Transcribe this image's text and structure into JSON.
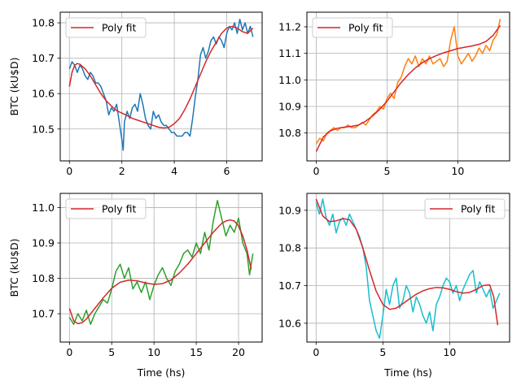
{
  "figure": {
    "background": "#ffffff",
    "grid_color": "#b0b0b0",
    "fit_color": "#d62728"
  },
  "chart_data": [
    {
      "type": "line",
      "xlabel": "",
      "ylabel": "BTC (kU$D)",
      "xlim": [
        -0.35,
        7.35
      ],
      "ylim": [
        10.41,
        10.83
      ],
      "xticks": [
        0,
        2,
        4,
        6
      ],
      "yticks": [
        10.5,
        10.6,
        10.7,
        10.8
      ],
      "ytick_labels": [
        "10.5",
        "10.6",
        "10.7",
        "10.8"
      ],
      "grid": true,
      "legend": {
        "loc": "upper left",
        "entries": [
          "Poly fit"
        ]
      },
      "series": [
        {
          "role": "data",
          "color": "#1f77b4",
          "x": [
            0,
            0.1,
            0.2,
            0.3,
            0.4,
            0.5,
            0.6,
            0.7,
            0.8,
            0.9,
            1.0,
            1.1,
            1.2,
            1.3,
            1.4,
            1.5,
            1.6,
            1.7,
            1.8,
            1.9,
            2.0,
            2.05,
            2.1,
            2.2,
            2.3,
            2.4,
            2.5,
            2.6,
            2.7,
            2.8,
            2.9,
            3.0,
            3.1,
            3.2,
            3.3,
            3.4,
            3.5,
            3.6,
            3.7,
            3.8,
            3.9,
            4.0,
            4.1,
            4.2,
            4.3,
            4.4,
            4.5,
            4.6,
            4.7,
            4.8,
            4.9,
            5.0,
            5.1,
            5.2,
            5.3,
            5.4,
            5.5,
            5.6,
            5.7,
            5.8,
            5.9,
            6.0,
            6.1,
            6.2,
            6.3,
            6.4,
            6.5,
            6.6,
            6.7,
            6.8,
            6.9,
            7.0
          ],
          "y": [
            10.67,
            10.69,
            10.68,
            10.66,
            10.68,
            10.67,
            10.65,
            10.64,
            10.66,
            10.65,
            10.63,
            10.63,
            10.62,
            10.6,
            10.58,
            10.54,
            10.56,
            10.55,
            10.57,
            10.52,
            10.47,
            10.44,
            10.52,
            10.55,
            10.53,
            10.56,
            10.57,
            10.55,
            10.6,
            10.57,
            10.53,
            10.51,
            10.5,
            10.55,
            10.53,
            10.54,
            10.52,
            10.51,
            10.51,
            10.5,
            10.49,
            10.49,
            10.48,
            10.48,
            10.48,
            10.49,
            10.49,
            10.48,
            10.53,
            10.59,
            10.64,
            10.71,
            10.73,
            10.7,
            10.72,
            10.75,
            10.76,
            10.74,
            10.76,
            10.75,
            10.73,
            10.77,
            10.79,
            10.78,
            10.8,
            10.77,
            10.81,
            10.78,
            10.8,
            10.77,
            10.79,
            10.76
          ]
        },
        {
          "role": "fit",
          "name": "Poly fit",
          "color": "#d62728",
          "x": [
            0,
            0.1,
            0.2,
            0.3,
            0.4,
            0.6,
            0.8,
            1.0,
            1.2,
            1.4,
            1.6,
            1.8,
            2.0,
            2.2,
            2.4,
            2.6,
            2.8,
            3.0,
            3.2,
            3.4,
            3.6,
            3.8,
            4.0,
            4.2,
            4.4,
            4.6,
            4.8,
            5.0,
            5.2,
            5.4,
            5.6,
            5.8,
            6.0,
            6.2,
            6.4,
            6.6,
            6.8,
            7.0
          ],
          "y": [
            10.62,
            10.66,
            10.68,
            10.685,
            10.683,
            10.67,
            10.65,
            10.625,
            10.6,
            10.58,
            10.565,
            10.552,
            10.545,
            10.538,
            10.53,
            10.525,
            10.52,
            10.515,
            10.51,
            10.505,
            10.503,
            10.505,
            10.515,
            10.53,
            10.555,
            10.585,
            10.62,
            10.655,
            10.69,
            10.72,
            10.745,
            10.77,
            10.785,
            10.79,
            10.785,
            10.775,
            10.77,
            10.785
          ]
        }
      ]
    },
    {
      "type": "line",
      "xlabel": "",
      "ylabel": "",
      "xlim": [
        -0.66,
        13.66
      ],
      "ylim": [
        10.695,
        11.255
      ],
      "xticks": [
        0,
        5,
        10
      ],
      "yticks": [
        10.8,
        10.9,
        11.0,
        11.1,
        11.2
      ],
      "ytick_labels": [
        "10.8",
        "10.9",
        "11.0",
        "11.1",
        "11.2"
      ],
      "grid": true,
      "legend": {
        "loc": "upper left",
        "entries": [
          "Poly fit"
        ]
      },
      "series": [
        {
          "role": "data",
          "color": "#ff7f0e",
          "x": [
            0,
            0.25,
            0.5,
            0.75,
            1,
            1.25,
            1.5,
            1.75,
            2,
            2.25,
            2.5,
            2.75,
            3,
            3.25,
            3.5,
            3.75,
            4,
            4.25,
            4.5,
            4.75,
            5,
            5.25,
            5.5,
            5.75,
            6,
            6.25,
            6.5,
            6.75,
            7,
            7.25,
            7.5,
            7.75,
            8,
            8.25,
            8.5,
            8.75,
            9,
            9.25,
            9.5,
            9.75,
            10,
            10.25,
            10.5,
            10.75,
            11,
            11.25,
            11.5,
            11.75,
            12,
            12.25,
            12.5,
            12.75,
            13
          ],
          "y": [
            10.76,
            10.78,
            10.77,
            10.8,
            10.81,
            10.82,
            10.81,
            10.82,
            10.82,
            10.83,
            10.82,
            10.82,
            10.83,
            10.84,
            10.83,
            10.85,
            10.87,
            10.88,
            10.9,
            10.89,
            10.93,
            10.95,
            10.93,
            10.99,
            11.01,
            11.05,
            11.08,
            11.06,
            11.09,
            11.05,
            11.08,
            11.06,
            11.09,
            11.06,
            11.07,
            11.08,
            11.05,
            11.07,
            11.15,
            11.2,
            11.09,
            11.06,
            11.08,
            11.1,
            11.07,
            11.09,
            11.12,
            11.1,
            11.13,
            11.11,
            11.15,
            11.17,
            11.23
          ]
        },
        {
          "role": "fit",
          "name": "Poly fit",
          "color": "#d62728",
          "x": [
            0,
            0.5,
            1,
            1.5,
            2,
            2.5,
            3,
            3.5,
            4,
            4.5,
            5,
            5.5,
            6,
            6.5,
            7,
            7.5,
            8,
            8.5,
            9,
            9.5,
            10,
            10.5,
            11,
            11.5,
            12,
            12.5,
            13
          ],
          "y": [
            10.73,
            10.785,
            10.808,
            10.818,
            10.822,
            10.825,
            10.83,
            10.845,
            10.865,
            10.89,
            10.92,
            10.955,
            10.99,
            11.02,
            11.045,
            11.065,
            11.08,
            11.092,
            11.102,
            11.11,
            11.118,
            11.123,
            11.128,
            11.134,
            11.145,
            11.168,
            11.205
          ]
        }
      ]
    },
    {
      "type": "line",
      "xlabel": "Time (hs)",
      "ylabel": "BTC (kU$D)",
      "xlim": [
        -1.09,
        22.79
      ],
      "ylim": [
        10.62,
        11.04
      ],
      "xticks": [
        0,
        5,
        10,
        15,
        20
      ],
      "yticks": [
        10.7,
        10.8,
        10.9,
        11.0
      ],
      "ytick_labels": [
        "10.7",
        "10.8",
        "10.9",
        "11.0"
      ],
      "grid": true,
      "legend": {
        "loc": "upper left",
        "entries": [
          "Poly fit"
        ]
      },
      "series": [
        {
          "role": "data",
          "color": "#2ca02c",
          "x": [
            0,
            0.5,
            1,
            1.5,
            2,
            2.5,
            3,
            3.5,
            4,
            4.5,
            5,
            5.5,
            6,
            6.5,
            7,
            7.5,
            8,
            8.5,
            9,
            9.5,
            10,
            10.5,
            11,
            11.5,
            12,
            12.5,
            13,
            13.5,
            14,
            14.5,
            15,
            15.5,
            16,
            16.5,
            17,
            17.5,
            18,
            18.5,
            19,
            19.5,
            20,
            20.5,
            21,
            21.3,
            21.7
          ],
          "y": [
            10.69,
            10.67,
            10.7,
            10.68,
            10.71,
            10.67,
            10.7,
            10.72,
            10.74,
            10.73,
            10.77,
            10.82,
            10.84,
            10.8,
            10.83,
            10.77,
            10.79,
            10.76,
            10.79,
            10.74,
            10.78,
            10.81,
            10.83,
            10.8,
            10.78,
            10.82,
            10.84,
            10.87,
            10.88,
            10.86,
            10.9,
            10.87,
            10.93,
            10.88,
            10.96,
            11.02,
            10.97,
            10.92,
            10.95,
            10.93,
            10.97,
            10.9,
            10.87,
            10.81,
            10.87
          ]
        },
        {
          "role": "fit",
          "name": "Poly fit",
          "color": "#d62728",
          "x": [
            0,
            0.5,
            1,
            1.5,
            2,
            3,
            4,
            5,
            6,
            7,
            8,
            9,
            10,
            11,
            12,
            13,
            14,
            15,
            16,
            17,
            18,
            18.5,
            19,
            19.5,
            20,
            20.5,
            21,
            21.5
          ],
          "y": [
            10.715,
            10.68,
            10.672,
            10.675,
            10.685,
            10.715,
            10.745,
            10.772,
            10.789,
            10.795,
            10.793,
            10.787,
            10.783,
            10.785,
            10.795,
            10.815,
            10.84,
            10.87,
            10.9,
            10.93,
            10.955,
            10.962,
            10.965,
            10.962,
            10.948,
            10.92,
            10.88,
            10.825
          ]
        }
      ]
    },
    {
      "type": "line",
      "xlabel": "Time (hs)",
      "ylabel": "",
      "xlim": [
        -0.69,
        14.49
      ],
      "ylim": [
        10.55,
        10.945
      ],
      "xticks": [
        0,
        5,
        10
      ],
      "yticks": [
        10.6,
        10.7,
        10.8,
        10.9
      ],
      "ytick_labels": [
        "10.6",
        "10.7",
        "10.8",
        "10.9"
      ],
      "grid": true,
      "legend": {
        "loc": "upper right",
        "entries": [
          "Poly fit"
        ]
      },
      "series": [
        {
          "role": "data",
          "color": "#17becf",
          "x": [
            0,
            0.25,
            0.5,
            0.75,
            1,
            1.25,
            1.5,
            1.75,
            2,
            2.25,
            2.5,
            2.75,
            3,
            3.25,
            3.5,
            3.75,
            4,
            4.25,
            4.5,
            4.75,
            5,
            5.25,
            5.5,
            5.75,
            6,
            6.25,
            6.5,
            6.75,
            7,
            7.25,
            7.5,
            7.75,
            8,
            8.25,
            8.5,
            8.75,
            9,
            9.25,
            9.5,
            9.75,
            10,
            10.25,
            10.5,
            10.75,
            11,
            11.25,
            11.5,
            11.75,
            12,
            12.25,
            12.5,
            12.75,
            13,
            13.25,
            13.5,
            13.75
          ],
          "y": [
            10.92,
            10.89,
            10.93,
            10.88,
            10.86,
            10.89,
            10.84,
            10.87,
            10.88,
            10.86,
            10.89,
            10.87,
            10.85,
            10.83,
            10.8,
            10.75,
            10.66,
            10.62,
            10.58,
            10.56,
            10.62,
            10.69,
            10.65,
            10.7,
            10.72,
            10.64,
            10.66,
            10.7,
            10.68,
            10.63,
            10.67,
            10.65,
            10.62,
            10.6,
            10.63,
            10.58,
            10.65,
            10.67,
            10.7,
            10.72,
            10.71,
            10.68,
            10.7,
            10.66,
            10.69,
            10.71,
            10.73,
            10.74,
            10.68,
            10.71,
            10.69,
            10.67,
            10.69,
            10.64,
            10.66,
            10.68
          ]
        },
        {
          "role": "fit",
          "name": "Poly fit",
          "color": "#d62728",
          "x": [
            0,
            0.5,
            1,
            1.5,
            2,
            2.5,
            3,
            3.5,
            4,
            4.5,
            5,
            5.5,
            6,
            6.5,
            7,
            7.5,
            8,
            8.5,
            9,
            9.5,
            10,
            10.5,
            11,
            11.5,
            12,
            12.5,
            13,
            13.3,
            13.6
          ],
          "y": [
            10.93,
            10.885,
            10.87,
            10.872,
            10.878,
            10.875,
            10.85,
            10.8,
            10.74,
            10.685,
            10.65,
            10.637,
            10.64,
            10.652,
            10.665,
            10.677,
            10.686,
            10.692,
            10.695,
            10.694,
            10.69,
            10.684,
            10.68,
            10.682,
            10.69,
            10.7,
            10.702,
            10.67,
            10.595
          ]
        }
      ]
    }
  ]
}
